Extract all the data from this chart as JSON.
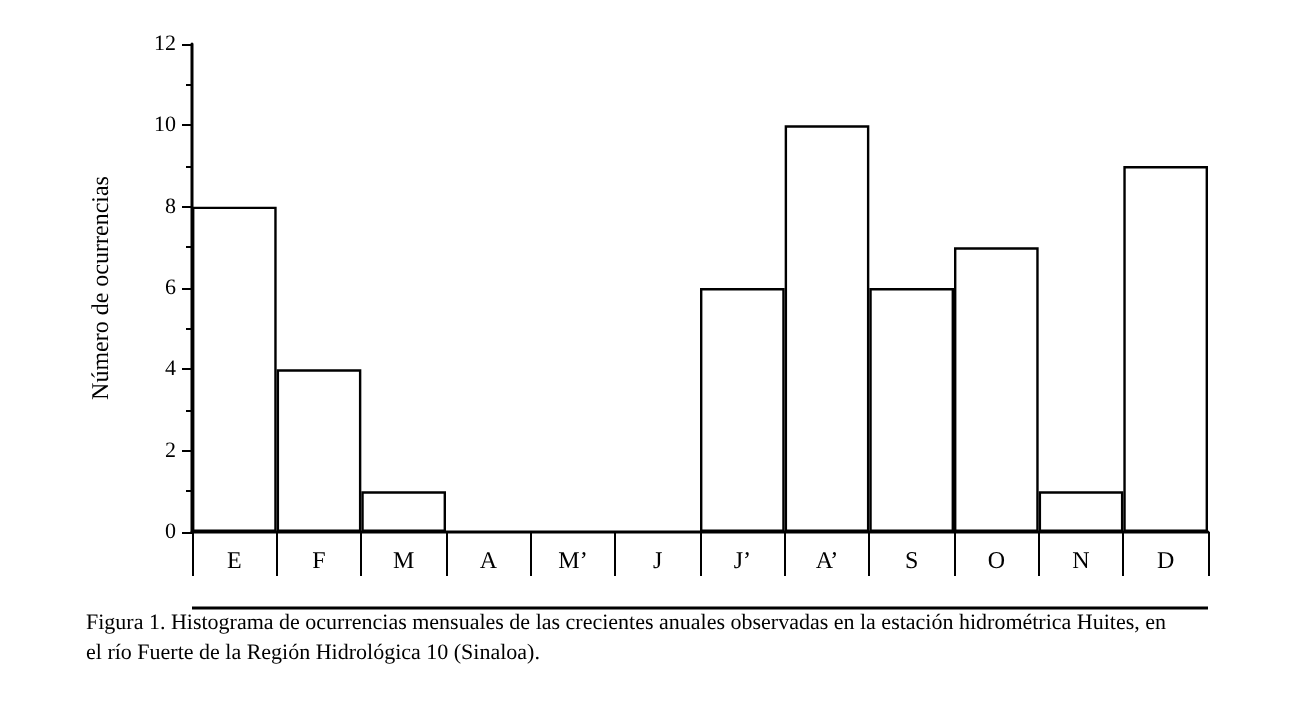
{
  "chart_data": {
    "type": "bar",
    "ylabel": "Número de ocurrencias",
    "categories": [
      "E",
      "F",
      "M",
      "A",
      "M’",
      "J",
      "J’",
      "A’",
      "S",
      "O",
      "N",
      "D"
    ],
    "values": [
      8,
      4,
      1,
      0,
      0,
      0,
      6,
      10,
      6,
      7,
      1,
      9
    ],
    "color": "#ffffff",
    "ylim": [
      0,
      12
    ],
    "yticks": [
      0,
      2,
      4,
      6,
      8,
      10,
      12
    ],
    "grid": false,
    "annotations": [
      "Figura 1. Histograma de ocurrencias mensuales de las crecientes anuales observadas en la estación hidrométrica Huites, en el río Fuerte de la Región Hidrológica 10 (Sinaloa)."
    ]
  }
}
